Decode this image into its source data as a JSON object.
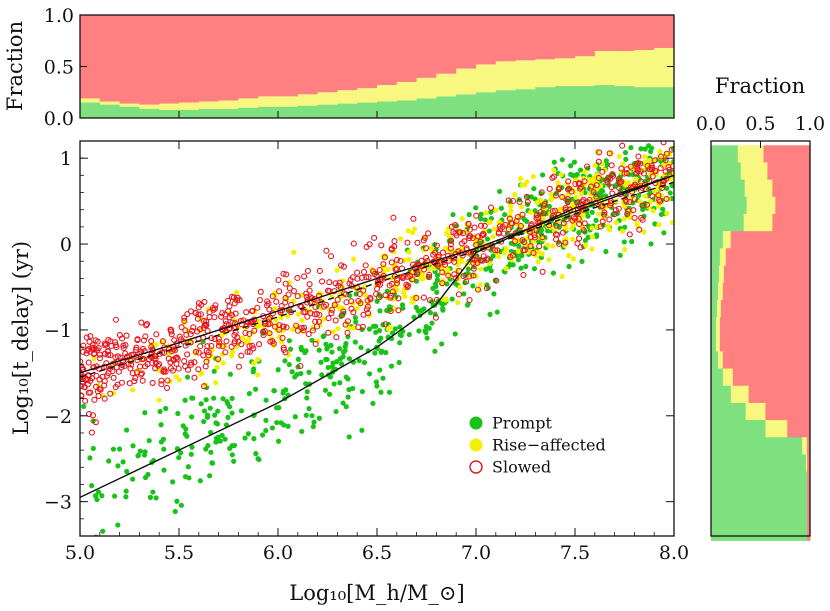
{
  "chart_data": [
    {
      "type": "area",
      "panel": "top-histogram",
      "ylabel": "Fraction",
      "xlim": [
        5.0,
        8.0
      ],
      "ylim": [
        0.0,
        1.0
      ],
      "y_tick_labels": [
        "0.0",
        "0.5",
        "1.0"
      ],
      "bin_centers": [
        5.05,
        5.15,
        5.25,
        5.35,
        5.45,
        5.55,
        5.65,
        5.75,
        5.85,
        5.95,
        6.05,
        6.15,
        6.25,
        6.35,
        6.45,
        6.55,
        6.65,
        6.75,
        6.85,
        6.95,
        7.05,
        7.15,
        7.25,
        7.35,
        7.45,
        7.55,
        7.65,
        7.75,
        7.85,
        7.95
      ],
      "series": [
        {
          "name": "Prompt",
          "color": "#7ee07e",
          "values": [
            0.15,
            0.13,
            0.11,
            0.09,
            0.08,
            0.08,
            0.09,
            0.09,
            0.1,
            0.11,
            0.11,
            0.12,
            0.13,
            0.14,
            0.15,
            0.16,
            0.17,
            0.19,
            0.21,
            0.23,
            0.25,
            0.27,
            0.28,
            0.3,
            0.31,
            0.31,
            0.32,
            0.31,
            0.3,
            0.3
          ]
        },
        {
          "name": "Rise-affected",
          "color": "#f8f880",
          "values": [
            0.04,
            0.03,
            0.03,
            0.04,
            0.06,
            0.07,
            0.07,
            0.08,
            0.09,
            0.1,
            0.1,
            0.11,
            0.12,
            0.13,
            0.14,
            0.16,
            0.18,
            0.2,
            0.22,
            0.25,
            0.27,
            0.28,
            0.28,
            0.27,
            0.27,
            0.29,
            0.33,
            0.34,
            0.36,
            0.38
          ]
        },
        {
          "name": "Slowed",
          "color": "#ff8080",
          "values": [
            0.81,
            0.84,
            0.86,
            0.87,
            0.86,
            0.85,
            0.84,
            0.83,
            0.81,
            0.79,
            0.79,
            0.77,
            0.75,
            0.73,
            0.71,
            0.68,
            0.65,
            0.61,
            0.57,
            0.52,
            0.48,
            0.45,
            0.44,
            0.43,
            0.42,
            0.4,
            0.35,
            0.35,
            0.34,
            0.32
          ]
        }
      ]
    },
    {
      "type": "scatter",
      "panel": "main",
      "xlabel": "Log₁₀[M_h/M_⊙]",
      "ylabel": "Log₁₀[t_delay] (yr)",
      "xlim": [
        5.0,
        8.0
      ],
      "ylim": [
        -3.4,
        1.2
      ],
      "x_tick_labels": [
        "5.0",
        "5.5",
        "6.0",
        "6.5",
        "7.0",
        "7.5",
        "8.0"
      ],
      "y_tick_labels": [
        "−3",
        "−2",
        "−1",
        "0",
        "1"
      ],
      "legend_position": "lower-right",
      "legend": [
        {
          "label": "Prompt",
          "marker": "filled-circle",
          "color": "#19c219"
        },
        {
          "label": "Rise−affected",
          "marker": "filled-circle",
          "color": "#f2f200"
        },
        {
          "label": "Slowed",
          "marker": "open-circle",
          "color": "#e8141c"
        }
      ],
      "groups": [
        {
          "name": "Prompt",
          "color": "#19c219",
          "trend": [
            [
              5.0,
              -2.9
            ],
            [
              5.5,
              -2.4
            ],
            [
              6.0,
              -1.8
            ],
            [
              6.5,
              -1.2
            ],
            [
              7.0,
              -0.1
            ],
            [
              7.5,
              0.45
            ],
            [
              8.0,
              0.8
            ]
          ],
          "spread": 0.28,
          "count": 700
        },
        {
          "name": "Rise-affected",
          "color": "#f2f200",
          "trend": [
            [
              5.0,
              -1.6
            ],
            [
              5.5,
              -1.3
            ],
            [
              6.0,
              -0.95
            ],
            [
              6.5,
              -0.55
            ],
            [
              7.0,
              -0.1
            ],
            [
              7.5,
              0.4
            ],
            [
              8.0,
              0.78
            ]
          ],
          "spread": 0.25,
          "count": 500
        },
        {
          "name": "Slowed",
          "color": "#e8141c",
          "trend": [
            [
              5.0,
              -1.5
            ],
            [
              5.5,
              -1.2
            ],
            [
              6.0,
              -0.85
            ],
            [
              6.5,
              -0.45
            ],
            [
              7.0,
              -0.05
            ],
            [
              7.5,
              0.4
            ],
            [
              8.0,
              0.8
            ]
          ],
          "spread": 0.22,
          "count": 900
        }
      ],
      "lines": [
        {
          "style": "solid",
          "points": [
            [
              5.0,
              -2.95
            ],
            [
              5.5,
              -2.4
            ],
            [
              6.0,
              -1.85
            ],
            [
              6.5,
              -1.2
            ],
            [
              6.8,
              -0.7
            ],
            [
              7.0,
              -0.1
            ],
            [
              7.5,
              0.42
            ],
            [
              8.0,
              0.8
            ]
          ]
        },
        {
          "style": "solid",
          "points": [
            [
              5.0,
              -1.5
            ],
            [
              5.5,
              -1.15
            ],
            [
              6.0,
              -0.78
            ],
            [
              6.5,
              -0.4
            ],
            [
              7.0,
              -0.05
            ],
            [
              7.5,
              0.38
            ],
            [
              8.0,
              0.8
            ]
          ]
        },
        {
          "style": "dashed",
          "points": [
            [
              5.0,
              -1.55
            ],
            [
              5.5,
              -1.2
            ],
            [
              6.0,
              -0.85
            ],
            [
              6.5,
              -0.45
            ],
            [
              7.0,
              -0.08
            ],
            [
              7.5,
              0.35
            ],
            [
              8.0,
              0.72
            ]
          ]
        }
      ]
    },
    {
      "type": "area",
      "panel": "right-histogram",
      "xlabel": "Fraction",
      "xlim": [
        0.0,
        1.0
      ],
      "x_tick_labels": [
        "0.0",
        "0.5",
        "1.0"
      ],
      "ylim": [
        -3.4,
        1.2
      ],
      "bin_centers": [
        1.05,
        0.85,
        0.65,
        0.45,
        0.25,
        0.05,
        -0.15,
        -0.35,
        -0.55,
        -0.75,
        -0.95,
        -1.15,
        -1.35,
        -1.55,
        -1.75,
        -1.95,
        -2.15,
        -2.35,
        -2.55,
        -2.75,
        -2.95,
        -3.15,
        -3.35
      ],
      "series": [
        {
          "name": "Prompt",
          "color": "#7ee07e",
          "values": [
            0.27,
            0.3,
            0.34,
            0.36,
            0.33,
            0.12,
            0.09,
            0.08,
            0.07,
            0.06,
            0.05,
            0.05,
            0.07,
            0.12,
            0.2,
            0.35,
            0.55,
            0.92,
            0.96,
            0.97,
            0.97,
            0.97,
            0.97
          ]
        },
        {
          "name": "Rise-affected",
          "color": "#f8f880",
          "values": [
            0.26,
            0.27,
            0.28,
            0.29,
            0.29,
            0.08,
            0.06,
            0.05,
            0.05,
            0.04,
            0.04,
            0.04,
            0.05,
            0.1,
            0.18,
            0.2,
            0.22,
            0.05,
            0.01,
            0.0,
            0.0,
            0.0,
            0.0
          ]
        },
        {
          "name": "Slowed",
          "color": "#ff8080",
          "values": [
            0.47,
            0.43,
            0.38,
            0.35,
            0.38,
            0.8,
            0.85,
            0.87,
            0.88,
            0.9,
            0.91,
            0.91,
            0.88,
            0.78,
            0.62,
            0.45,
            0.23,
            0.03,
            0.03,
            0.03,
            0.03,
            0.03,
            0.03
          ]
        }
      ]
    }
  ]
}
